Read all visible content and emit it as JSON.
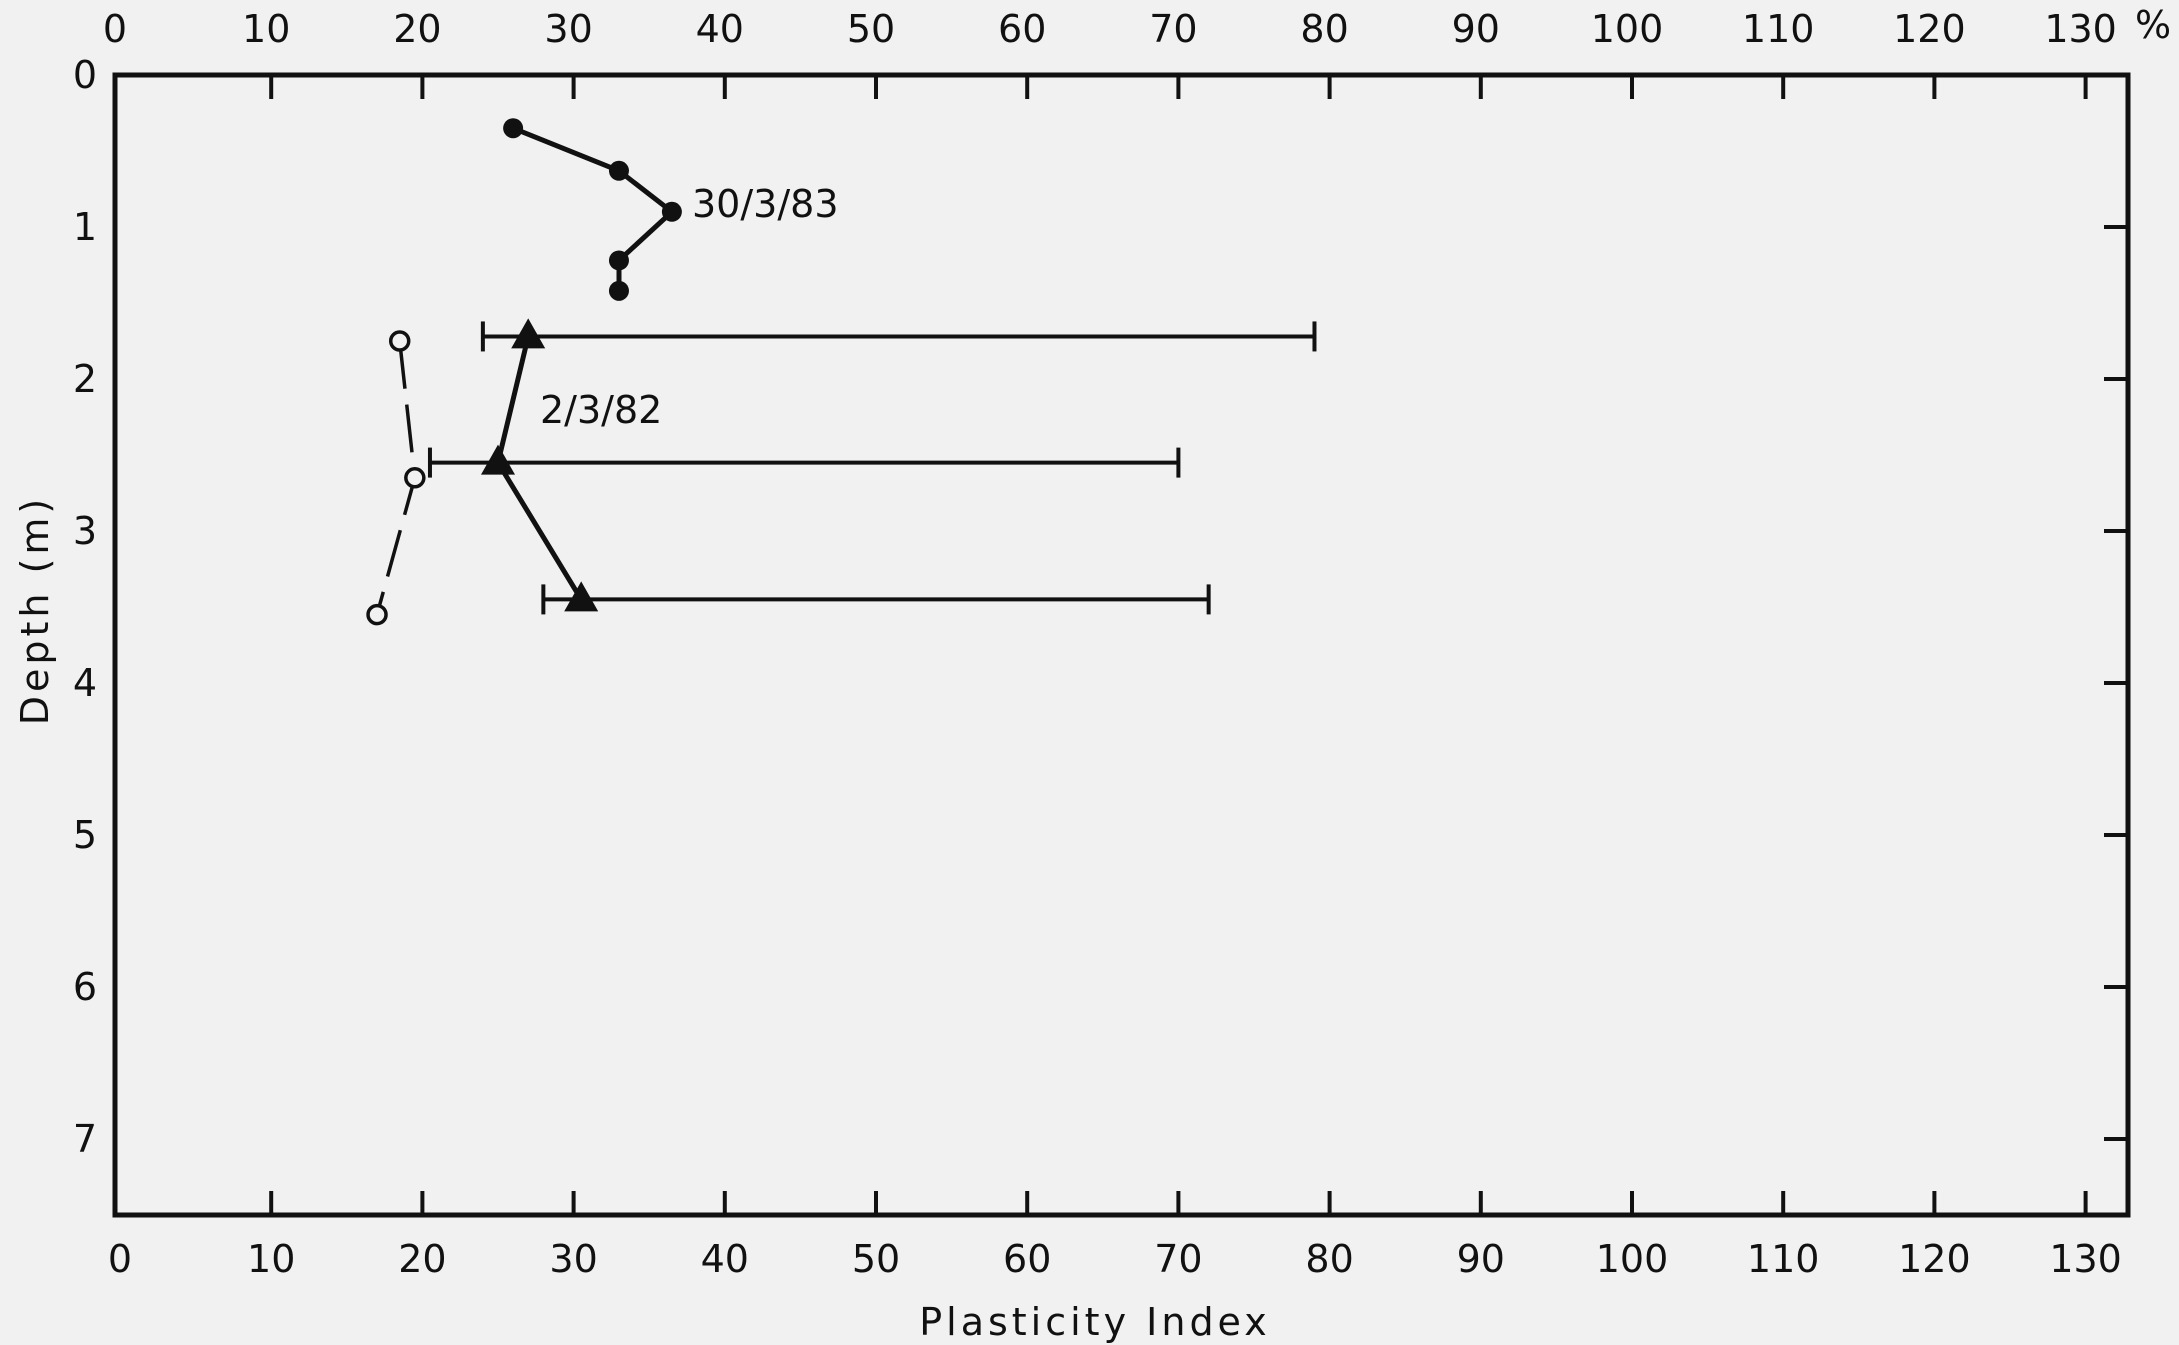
{
  "chart_data": {
    "type": "scatter",
    "title": "",
    "xlabel": "Plasticity   Index",
    "ylabel": "Depth (m)",
    "x_unit_top": "%",
    "xlim": [
      0,
      135
    ],
    "ylim": [
      0,
      7.5
    ],
    "y_inverted": true,
    "x_ticks": [
      0,
      10,
      20,
      30,
      40,
      50,
      60,
      70,
      80,
      90,
      100,
      110,
      120,
      130
    ],
    "y_ticks": [
      0,
      1,
      2,
      3,
      4,
      5,
      6,
      7
    ],
    "grid": false,
    "series": [
      {
        "name": "30/3/83",
        "marker": "filled-circle",
        "points": [
          {
            "x": 26,
            "y": 0.35
          },
          {
            "x": 33,
            "y": 0.63
          },
          {
            "x": 36.5,
            "y": 0.9
          },
          {
            "x": 33,
            "y": 1.22
          },
          {
            "x": 33,
            "y": 1.42
          }
        ]
      },
      {
        "name": "2/3/82",
        "marker": "filled-triangle",
        "points": [
          {
            "x": 27,
            "y": 1.72,
            "range": [
              24,
              79
            ]
          },
          {
            "x": 25,
            "y": 2.55,
            "range": [
              20.5,
              70
            ]
          },
          {
            "x": 30.5,
            "y": 3.45,
            "range": [
              28,
              72
            ]
          }
        ]
      },
      {
        "marker": "open-circle",
        "dashed": true,
        "points": [
          {
            "x": 18.5,
            "y": 1.75
          },
          {
            "x": 19.5,
            "y": 2.65
          },
          {
            "x": 17,
            "y": 3.55
          }
        ]
      }
    ]
  }
}
